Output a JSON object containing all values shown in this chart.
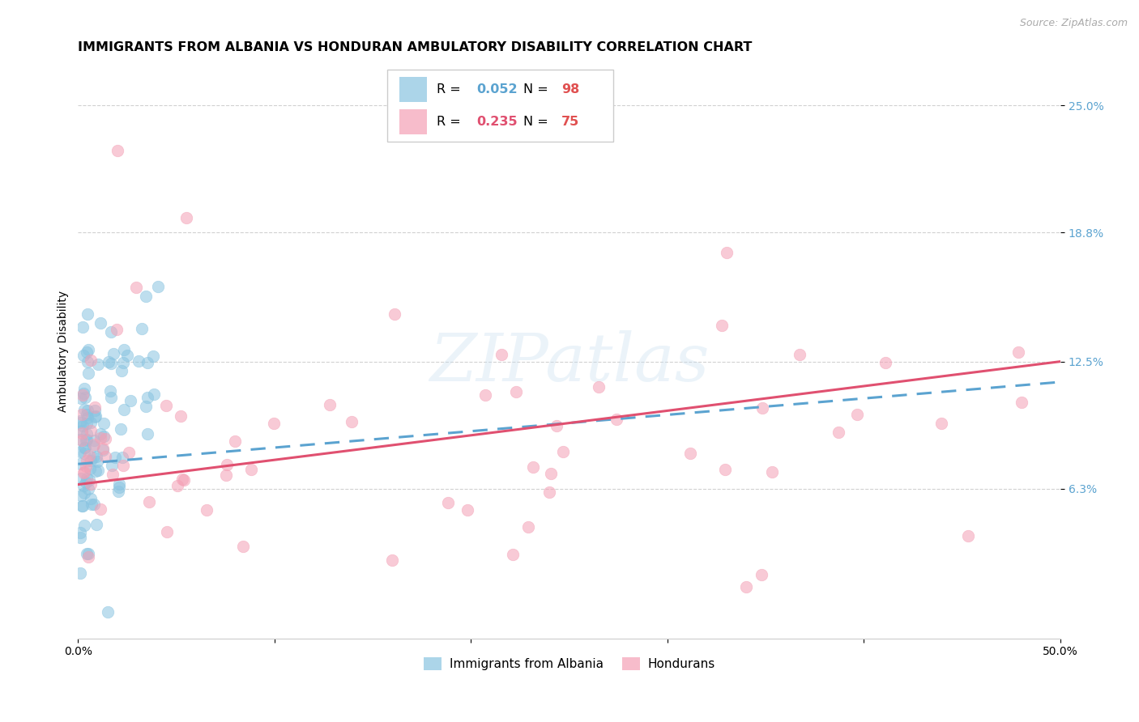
{
  "title": "IMMIGRANTS FROM ALBANIA VS HONDURAN AMBULATORY DISABILITY CORRELATION CHART",
  "source": "Source: ZipAtlas.com",
  "ylabel": "Ambulatory Disability",
  "xlim": [
    0.0,
    0.5
  ],
  "ylim": [
    -0.01,
    0.27
  ],
  "yticks": [
    0.063,
    0.125,
    0.188,
    0.25
  ],
  "ytick_labels": [
    "6.3%",
    "12.5%",
    "18.8%",
    "25.0%"
  ],
  "xticks": [
    0.0,
    0.1,
    0.2,
    0.3,
    0.4,
    0.5
  ],
  "xtick_labels": [
    "0.0%",
    "",
    "",
    "",
    "",
    "50.0%"
  ],
  "albania_R": 0.052,
  "albania_N": 98,
  "honduran_R": 0.235,
  "honduran_N": 75,
  "albania_color": "#89c4e1",
  "honduran_color": "#f4a0b5",
  "albania_line_color": "#5ba3d0",
  "honduran_line_color": "#e05070",
  "background_color": "#ffffff",
  "grid_color": "#cccccc",
  "title_fontsize": 11.5,
  "axis_label_fontsize": 10,
  "tick_fontsize": 10,
  "watermark": "ZIPatlas"
}
